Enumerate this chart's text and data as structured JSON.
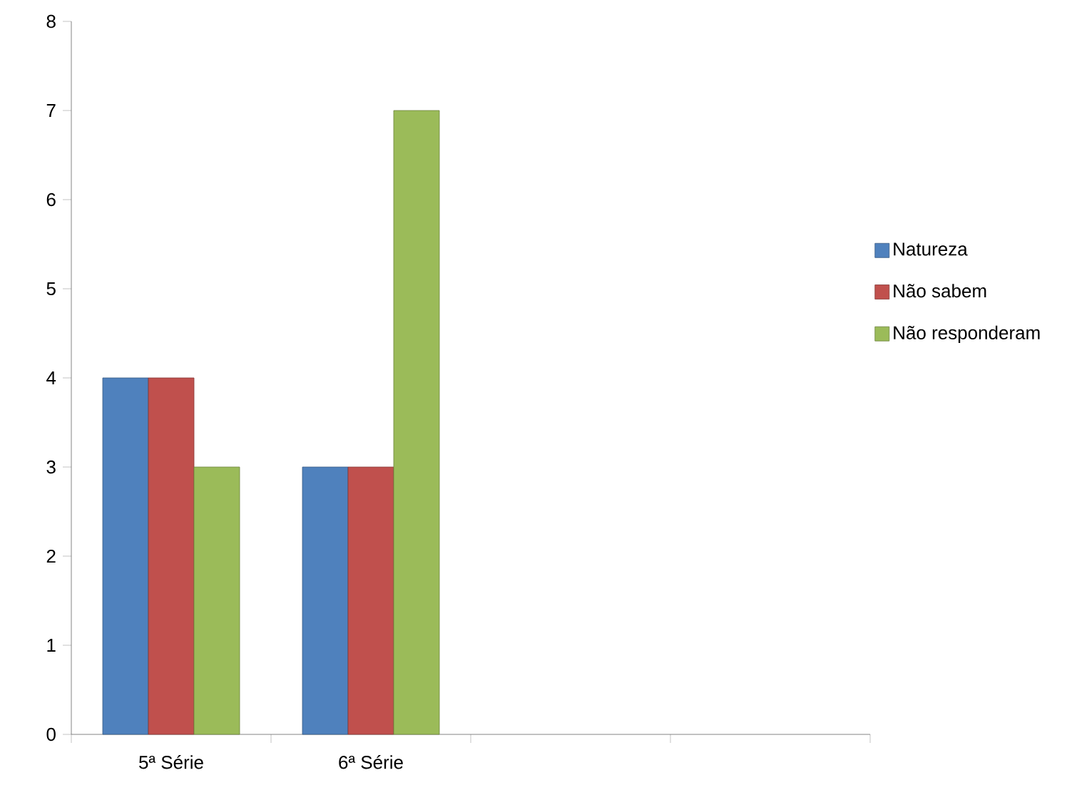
{
  "chart_data": {
    "type": "bar",
    "categories": [
      "5ª Série",
      "6ª Série",
      null,
      null
    ],
    "series": [
      {
        "name": "Natureza",
        "color": "#4f81bd",
        "values": [
          4,
          3,
          null,
          null
        ]
      },
      {
        "name": "Não sabem",
        "color": "#c0504d",
        "values": [
          4,
          3,
          null,
          null
        ]
      },
      {
        "name": "Não responderam",
        "color": "#9bbb59",
        "values": [
          3,
          7,
          null,
          null
        ]
      }
    ],
    "ylim": [
      0,
      8
    ],
    "yticks": [
      0,
      1,
      2,
      3,
      4,
      5,
      6,
      7,
      8
    ],
    "grid": false,
    "legend": "right"
  }
}
